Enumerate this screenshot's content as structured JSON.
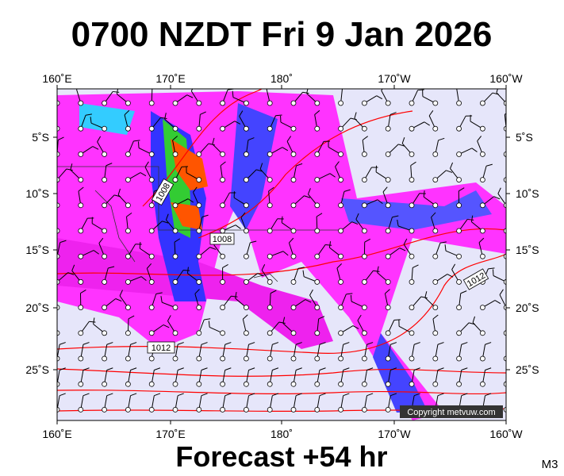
{
  "header": {
    "title": "0700 NZDT Fri 9 Jan 2026"
  },
  "map": {
    "longitudes": [
      "160˚E",
      "170˚E",
      "180˚",
      "170˚W",
      "160˚W"
    ],
    "latitudes": [
      "5˚S",
      "10˚S",
      "15˚S",
      "20˚S",
      "25˚S"
    ],
    "isobar_labels": [
      "1008",
      "1008",
      "1012",
      "1012"
    ],
    "copyright": "Copyright metvuw.com"
  },
  "footer": {
    "forecast": "Forecast +54 hr",
    "code": "M3"
  }
}
